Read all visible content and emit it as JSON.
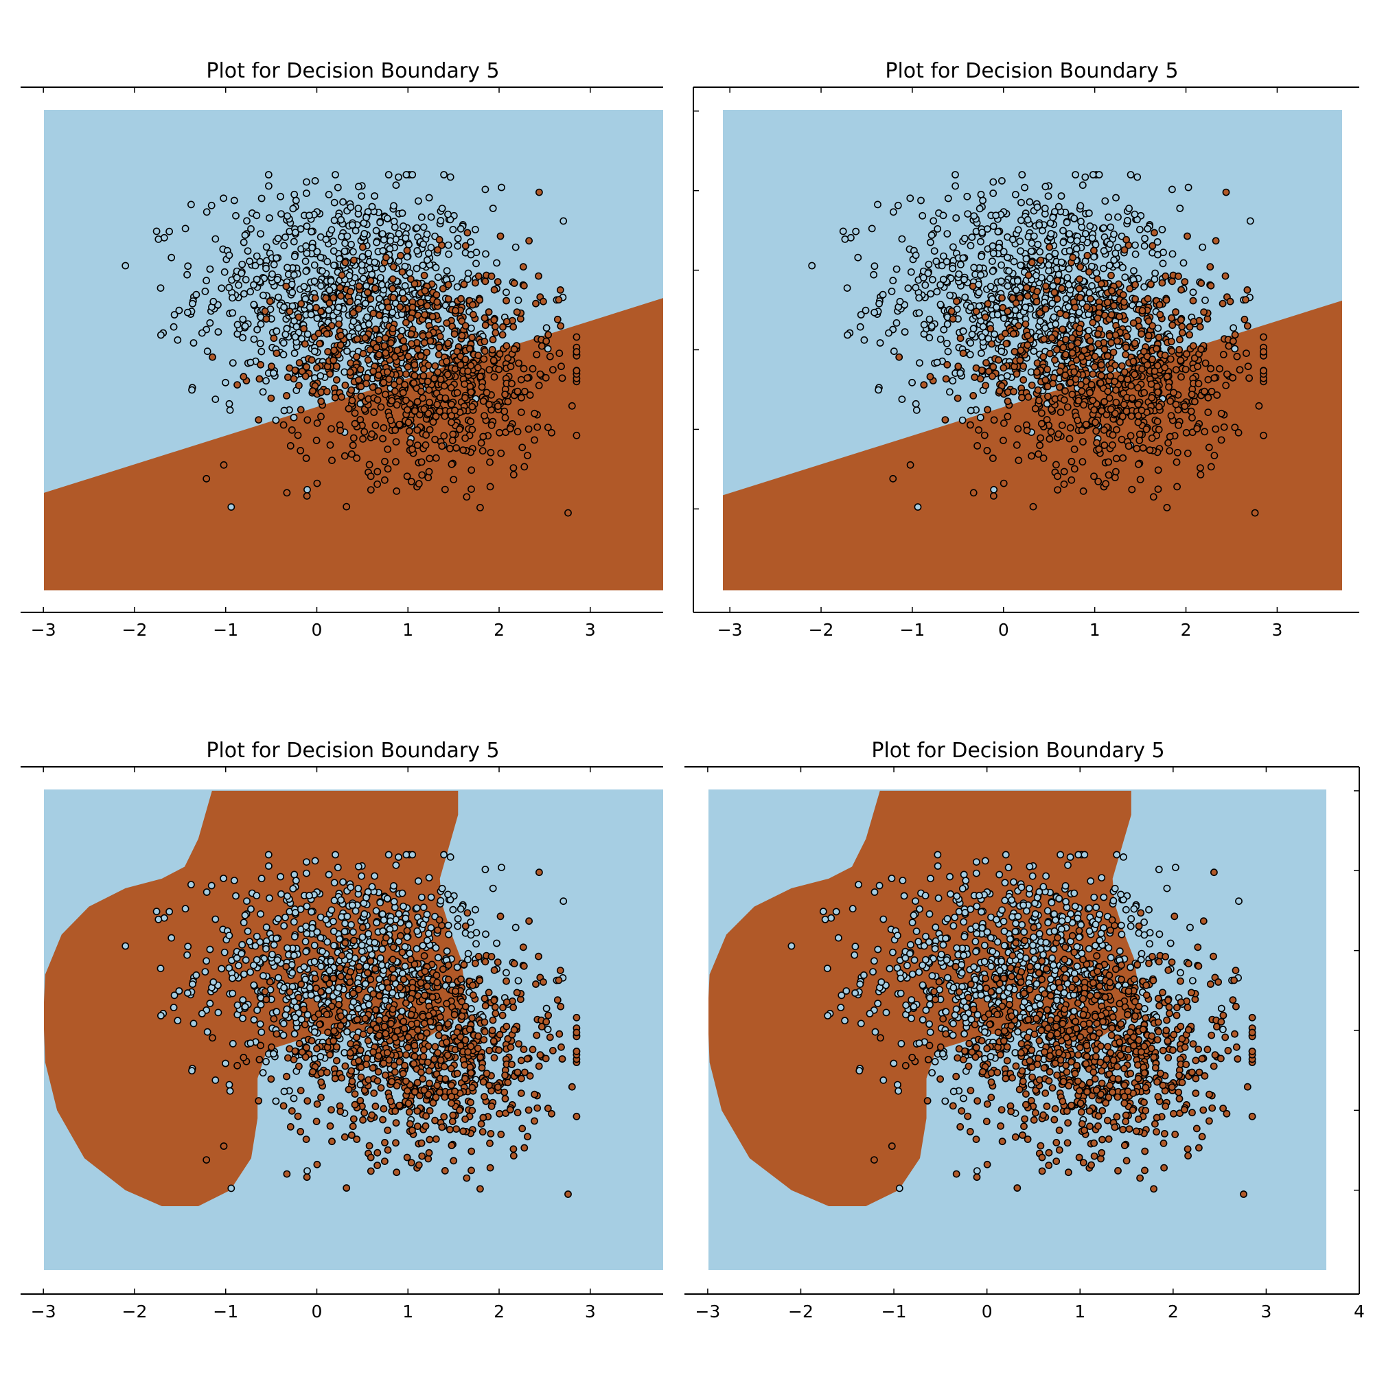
{
  "figure": {
    "background": "#ffffff",
    "class_colors": {
      "class_0": "#a6cee3",
      "class_1": "#b15928"
    },
    "point_edge_color": "#000000"
  },
  "chart_data": [
    {
      "type": "scatter",
      "title": "Plot for Decision Boundary 5",
      "xlabel": "",
      "ylabel": "",
      "xlim": [
        -3.25,
        3.8
      ],
      "ylim": [
        -3.3,
        3.3
      ],
      "xticks": [
        -3,
        -2,
        -1,
        0,
        1,
        2,
        3
      ],
      "xtick_labels": [
        "−3",
        "−2",
        "−1",
        "0",
        "1",
        "2",
        "3"
      ],
      "decision_boundary": {
        "kind": "linear",
        "line": [
          [
            -3.0,
            -1.8
          ],
          [
            3.8,
            0.65
          ]
        ],
        "below": "class_1",
        "above": "class_0"
      },
      "grid": false
    },
    {
      "type": "scatter",
      "title": "Plot for Decision Boundary 5",
      "xlabel": "",
      "ylabel": "",
      "xlim": [
        -3.4,
        3.9
      ],
      "ylim": [
        -3.3,
        3.3
      ],
      "xticks": [
        -3,
        -2,
        -1,
        0,
        1,
        2,
        3,
        4
      ],
      "xtick_labels": [
        "−3",
        "−2",
        "−1",
        "0",
        "1",
        "2",
        "3",
        "4"
      ],
      "decision_boundary": {
        "kind": "linear",
        "line": [
          [
            -3.0,
            -1.8
          ],
          [
            3.8,
            0.65
          ]
        ],
        "below": "class_1",
        "above": "class_0"
      },
      "grid": false
    },
    {
      "type": "scatter",
      "title": "Plot for Decision Boundary 5",
      "xlabel": "",
      "ylabel": "",
      "xlim": [
        -3.25,
        3.8
      ],
      "ylim": [
        -3.3,
        3.3
      ],
      "xticks": [
        -3,
        -2,
        -1,
        0,
        1,
        2,
        3
      ],
      "xtick_labels": [
        "−3",
        "−2",
        "−1",
        "0",
        "1",
        "2",
        "3"
      ],
      "decision_boundary": {
        "kind": "nonlinear",
        "region_class": "class_1",
        "outside": "class_0",
        "polygon": [
          [
            -1.15,
            3.0
          ],
          [
            1.55,
            3.0
          ],
          [
            1.55,
            2.7
          ],
          [
            1.45,
            2.3
          ],
          [
            1.35,
            1.9
          ],
          [
            1.37,
            1.6
          ],
          [
            1.48,
            1.2
          ],
          [
            1.58,
            0.9
          ],
          [
            1.62,
            0.6
          ],
          [
            1.6,
            0.2
          ],
          [
            1.2,
            -0.1
          ],
          [
            0.5,
            0.0
          ],
          [
            0.0,
            -0.05
          ],
          [
            -0.55,
            -0.25
          ],
          [
            -0.65,
            -0.6
          ],
          [
            -0.65,
            -1.1
          ],
          [
            -0.72,
            -1.6
          ],
          [
            -0.95,
            -2.0
          ],
          [
            -1.3,
            -2.2
          ],
          [
            -1.7,
            -2.2
          ],
          [
            -2.1,
            -2.0
          ],
          [
            -2.55,
            -1.6
          ],
          [
            -2.85,
            -1.0
          ],
          [
            -2.98,
            -0.4
          ],
          [
            -3.0,
            0.2
          ],
          [
            -2.98,
            0.7
          ],
          [
            -2.8,
            1.2
          ],
          [
            -2.5,
            1.55
          ],
          [
            -2.1,
            1.78
          ],
          [
            -1.7,
            1.9
          ],
          [
            -1.45,
            2.05
          ],
          [
            -1.3,
            2.4
          ],
          [
            -1.2,
            2.8
          ]
        ]
      },
      "grid": false
    },
    {
      "type": "scatter",
      "title": "Plot for Decision Boundary 5",
      "xlabel": "",
      "ylabel": "",
      "xlim": [
        -3.25,
        4.0
      ],
      "ylim": [
        -3.3,
        3.3
      ],
      "xticks": [
        -3,
        -2,
        -1,
        0,
        1,
        2,
        3,
        4
      ],
      "xtick_labels": [
        "−3",
        "−2",
        "−1",
        "0",
        "1",
        "2",
        "3",
        "4"
      ],
      "decision_boundary": {
        "kind": "nonlinear",
        "region_class": "class_1",
        "outside": "class_0",
        "polygon": [
          [
            -1.15,
            3.0
          ],
          [
            1.55,
            3.0
          ],
          [
            1.55,
            2.7
          ],
          [
            1.45,
            2.3
          ],
          [
            1.35,
            1.9
          ],
          [
            1.37,
            1.6
          ],
          [
            1.48,
            1.2
          ],
          [
            1.58,
            0.9
          ],
          [
            1.62,
            0.6
          ],
          [
            1.6,
            0.2
          ],
          [
            1.2,
            -0.1
          ],
          [
            0.5,
            0.0
          ],
          [
            0.0,
            -0.05
          ],
          [
            -0.55,
            -0.25
          ],
          [
            -0.65,
            -0.6
          ],
          [
            -0.65,
            -1.1
          ],
          [
            -0.72,
            -1.6
          ],
          [
            -0.95,
            -2.0
          ],
          [
            -1.3,
            -2.2
          ],
          [
            -1.7,
            -2.2
          ],
          [
            -2.1,
            -2.0
          ],
          [
            -2.55,
            -1.6
          ],
          [
            -2.85,
            -1.0
          ],
          [
            -2.98,
            -0.4
          ],
          [
            -3.0,
            0.2
          ],
          [
            -2.98,
            0.7
          ],
          [
            -2.8,
            1.2
          ],
          [
            -2.5,
            1.55
          ],
          [
            -2.1,
            1.78
          ],
          [
            -1.7,
            1.9
          ],
          [
            -1.45,
            2.05
          ],
          [
            -1.3,
            2.4
          ],
          [
            -1.2,
            2.8
          ]
        ]
      },
      "grid": false
    }
  ],
  "points": {
    "class_0": {
      "count": 850,
      "center": [
        0.3,
        0.75
      ],
      "spread": [
        0.8,
        0.65
      ]
    },
    "class_1": {
      "count": 850,
      "center": [
        1.2,
        -0.25
      ],
      "spread": [
        0.75,
        0.65
      ]
    }
  }
}
